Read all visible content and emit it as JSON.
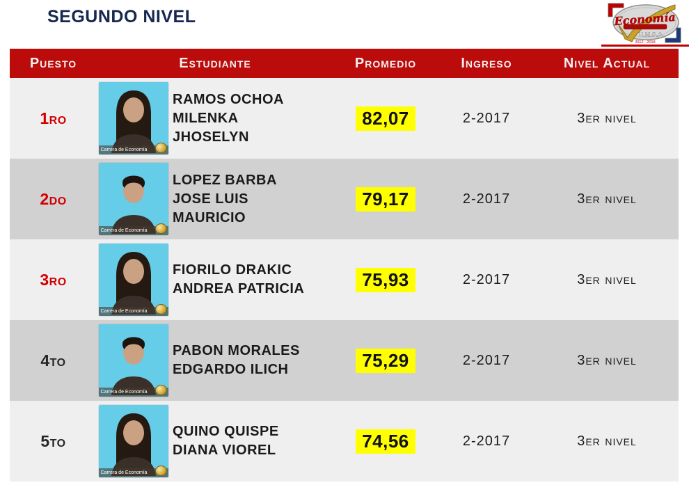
{
  "page": {
    "title": "SEGUNDO NIVEL"
  },
  "logo": {
    "name": "Economía",
    "org": "U.M.S.A.",
    "years": "2012 - 2018"
  },
  "colors": {
    "header_red": "#BB0B0B",
    "position_red": "#D10000",
    "highlight_yellow": "#FFFF00",
    "title_navy": "#16284E",
    "row_light": "#F0EFEF",
    "row_dark": "#D2D1D1",
    "photo_cyan": "#66CDE9"
  },
  "table": {
    "headers": {
      "puesto": "Puesto",
      "estudiante": "Estudiante",
      "promedio": "Promedio",
      "ingreso": "Ingreso",
      "nivel": "Nivel Actual"
    },
    "rows": [
      {
        "puesto": "1ro",
        "top3": true,
        "portrait": "female",
        "photo_caption": "Carrera de Economía",
        "nombre_lines": [
          "RAMOS OCHOA",
          "MILENKA",
          "JHOSELYN"
        ],
        "promedio": "82,07",
        "ingreso": "2-2017",
        "nivel": "3er nivel"
      },
      {
        "puesto": "2do",
        "top3": true,
        "portrait": "male",
        "photo_caption": "Carrera de Economía",
        "nombre_lines": [
          "LOPEZ BARBA",
          "JOSE LUIS",
          "MAURICIO"
        ],
        "promedio": "79,17",
        "ingreso": "2-2017",
        "nivel": "3er nivel"
      },
      {
        "puesto": "3ro",
        "top3": true,
        "portrait": "female",
        "photo_caption": "Carrera de Economía",
        "nombre_lines": [
          "FIORILO DRAKIC",
          "ANDREA PATRICIA"
        ],
        "promedio": "75,93",
        "ingreso": "2-2017",
        "nivel": "3er nivel"
      },
      {
        "puesto": "4to",
        "top3": false,
        "portrait": "male",
        "photo_caption": "Carrera de Economía",
        "nombre_lines": [
          "PABON MORALES",
          "EDGARDO ILICH"
        ],
        "promedio": "75,29",
        "ingreso": "2-2017",
        "nivel": "3er nivel"
      },
      {
        "puesto": "5to",
        "top3": false,
        "portrait": "female",
        "photo_caption": "Carrera de Economía",
        "nombre_lines": [
          "QUINO QUISPE",
          "DIANA VIOREL"
        ],
        "promedio": "74,56",
        "ingreso": "2-2017",
        "nivel": "3er nivel"
      }
    ]
  }
}
